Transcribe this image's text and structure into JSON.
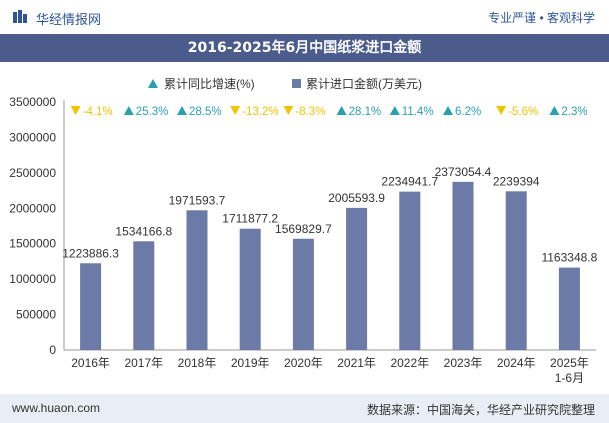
{
  "header": {
    "brand": "华经情报网",
    "tagline": "专业严谨 • 客观科学"
  },
  "footer": {
    "site": "www.huaon.com",
    "source": "数据来源：中国海关，华经产业研究院整理"
  },
  "colors": {
    "bar": "#6b7aa6",
    "growth_up": "#2a9fb0",
    "growth_down": "#f0c400",
    "title_bg": "#4a5b8c"
  },
  "chart_data": {
    "type": "bar",
    "title": "2016-2025年6月中国纸浆进口金额",
    "categories": [
      "2016年",
      "2017年",
      "2018年",
      "2019年",
      "2020年",
      "2021年",
      "2022年",
      "2023年",
      "2024年",
      "2025年\n1-6月"
    ],
    "series": [
      {
        "name": "累计进口金额(万美元)",
        "values": [
          1223886.3,
          1534166.8,
          1971593.7,
          1711877.2,
          1569829.7,
          2005593.9,
          2234941.7,
          2373054.4,
          2239394,
          1163348.8
        ],
        "labels": [
          "1223886.3",
          "1534166.8",
          "1971593.7",
          "1711877.2",
          "1569829.7",
          "2005593.9",
          "2234941.7",
          "2373054.4",
          "2239394",
          "1163348.8"
        ]
      },
      {
        "name": "累计同比增速(%)",
        "values": [
          -4.1,
          25.3,
          28.5,
          -13.2,
          -8.3,
          28.1,
          11.4,
          6.2,
          -5.6,
          2.3
        ],
        "labels": [
          "-4.1%",
          "25.3%",
          "28.5%",
          "-13.2%",
          "-8.3%",
          "28.1%",
          "11.4%",
          "6.2%",
          "-5.6%",
          "2.3%"
        ]
      }
    ],
    "ylim": [
      0,
      3500000
    ],
    "yticks": [
      "0",
      "500000",
      "1000000",
      "1500000",
      "2000000",
      "2500000",
      "3000000",
      "3500000"
    ],
    "legend": "top-center",
    "grid": false
  }
}
